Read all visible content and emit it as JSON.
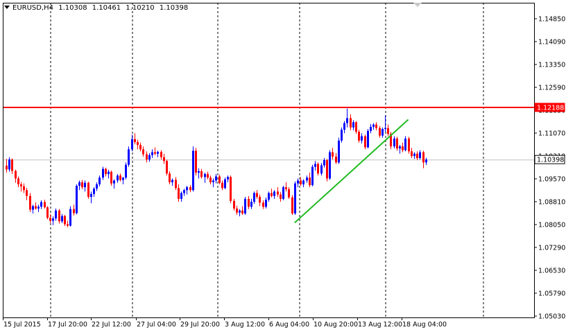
{
  "header": {
    "symbol": "EURUSD,H4",
    "open": "1.10308",
    "high": "1.10461",
    "low": "1.10210",
    "close": "1.10398"
  },
  "colors": {
    "bull": "#0000ff",
    "bear": "#ff0000",
    "frame": "#000000",
    "resistance_line": "#ff0000",
    "trend_line": "#22bb22",
    "bid_line": "#c0c0c0",
    "bid_badge_bg": "#ffffff",
    "resistance_badge_bg": "#ff0000"
  },
  "chart_data": {
    "type": "candlestick",
    "symbol": "EURUSD",
    "timeframe": "H4",
    "ylim": [
      1.0503,
      1.1523
    ],
    "y_ticks": [
      "1.14850",
      "1.14090",
      "1.13350",
      "1.12590",
      "1.11830",
      "1.11070",
      "1.10310",
      "1.09570",
      "1.08810",
      "1.08050",
      "1.07290",
      "1.06530",
      "1.05790",
      "1.05030"
    ],
    "x_ticks": [
      "15 Jul 2015",
      "17 Jul 20:00",
      "22 Jul 12:00",
      "27 Jul 04:00",
      "29 Jul 20:00",
      "3 Aug 12:00",
      "6 Aug 04:00",
      "10 Aug 20:00",
      "13 Aug 12:00",
      "18 Aug 04:00"
    ],
    "grid": "vertical dashed period separators",
    "horizontal_line": {
      "price": 1.12188,
      "label": "1.12188"
    },
    "bid_line": {
      "price": 1.10398,
      "label": "1.10398"
    },
    "trend_line": {
      "from": {
        "bar": 99,
        "price": 1.0823
      },
      "to": {
        "bar": 138,
        "price": 1.1177
      }
    },
    "candles": [
      [
        1.1019,
        1.1042,
        1.0995,
        1.1006
      ],
      [
        1.1006,
        1.1048,
        1.0998,
        1.104
      ],
      [
        1.104,
        1.1044,
        1.099,
        1.1001
      ],
      [
        1.1001,
        1.1005,
        1.096,
        1.0975
      ],
      [
        1.0975,
        1.0982,
        1.0945,
        1.0955
      ],
      [
        1.0955,
        1.0963,
        1.093,
        1.0948
      ],
      [
        1.0948,
        1.0958,
        1.0925,
        1.0935
      ],
      [
        1.0935,
        1.0943,
        1.09,
        1.0915
      ],
      [
        1.0915,
        1.0925,
        1.086,
        1.0868
      ],
      [
        1.0868,
        1.0885,
        1.0855,
        1.088
      ],
      [
        1.088,
        1.0893,
        1.0868,
        1.0872
      ],
      [
        1.0872,
        1.0885,
        1.086,
        1.0878
      ],
      [
        1.0878,
        1.09,
        1.087,
        1.0894
      ],
      [
        1.0894,
        1.0902,
        1.0872,
        1.0876
      ],
      [
        1.0876,
        1.088,
        1.0835,
        1.084
      ],
      [
        1.084,
        1.0852,
        1.0822,
        1.083
      ],
      [
        1.083,
        1.0845,
        1.0815,
        1.0838
      ],
      [
        1.0838,
        1.0872,
        1.083,
        1.0865
      ],
      [
        1.0865,
        1.087,
        1.082,
        1.0828
      ],
      [
        1.0828,
        1.0853,
        1.0822,
        1.0846
      ],
      [
        1.0846,
        1.085,
        1.0812,
        1.0818
      ],
      [
        1.0818,
        1.083,
        1.0808,
        1.0813
      ],
      [
        1.0813,
        1.088,
        1.081,
        1.087
      ],
      [
        1.087,
        1.0885,
        1.0848,
        1.0856
      ],
      [
        1.0856,
        1.0955,
        1.0852,
        1.095
      ],
      [
        1.095,
        1.0968,
        1.0935,
        1.0962
      ],
      [
        1.0962,
        1.097,
        1.0938,
        1.0945
      ],
      [
        1.0945,
        1.0968,
        1.093,
        1.096
      ],
      [
        1.096,
        1.0964,
        1.0905,
        1.0912
      ],
      [
        1.0912,
        1.093,
        1.089,
        1.0922
      ],
      [
        1.0922,
        1.0945,
        1.0912,
        1.094
      ],
      [
        1.094,
        1.0962,
        1.0932,
        1.0955
      ],
      [
        1.0955,
        1.0985,
        1.0948,
        1.0978
      ],
      [
        1.0978,
        1.1015,
        1.097,
        1.1008
      ],
      [
        1.1008,
        1.1012,
        1.0982,
        1.099
      ],
      [
        1.099,
        1.1005,
        1.0975,
        1.0998
      ],
      [
        1.0998,
        1.1002,
        1.095,
        1.0958
      ],
      [
        1.0958,
        1.0972,
        1.094,
        1.0968
      ],
      [
        1.0968,
        1.099,
        1.096,
        1.0985
      ],
      [
        1.0985,
        1.0992,
        1.0965,
        1.097
      ],
      [
        1.097,
        1.098,
        1.0955,
        1.0978
      ],
      [
        1.0978,
        1.103,
        1.0972,
        1.1022
      ],
      [
        1.1022,
        1.1085,
        1.1015,
        1.1075
      ],
      [
        1.1075,
        1.1125,
        1.1068,
        1.111
      ],
      [
        1.111,
        1.113,
        1.1092,
        1.11
      ],
      [
        1.11,
        1.1108,
        1.1075,
        1.109
      ],
      [
        1.109,
        1.1098,
        1.1068,
        1.1075
      ],
      [
        1.1075,
        1.1085,
        1.105,
        1.1058
      ],
      [
        1.1058,
        1.1068,
        1.103,
        1.104
      ],
      [
        1.104,
        1.1062,
        1.1032,
        1.1055
      ],
      [
        1.1055,
        1.1075,
        1.1045,
        1.1065
      ],
      [
        1.1065,
        1.1082,
        1.1055,
        1.106
      ],
      [
        1.106,
        1.107,
        1.1048,
        1.1066
      ],
      [
        1.1066,
        1.1072,
        1.104,
        1.1048
      ],
      [
        1.1048,
        1.106,
        1.1025,
        1.1035
      ],
      [
        1.1035,
        1.104,
        1.0985,
        1.0992
      ],
      [
        1.0992,
        1.1,
        1.0955,
        1.0962
      ],
      [
        1.0962,
        1.0975,
        1.095,
        1.097
      ],
      [
        1.097,
        1.098,
        1.0935,
        1.0942
      ],
      [
        1.0942,
        1.0955,
        1.0895,
        1.0905
      ],
      [
        1.0905,
        1.093,
        1.0895,
        1.0925
      ],
      [
        1.0925,
        1.094,
        1.0915,
        1.0935
      ],
      [
        1.0935,
        1.095,
        1.092,
        1.0945
      ],
      [
        1.0945,
        1.0952,
        1.0928,
        1.0935
      ],
      [
        1.0935,
        1.1085,
        1.093,
        1.107
      ],
      [
        1.107,
        1.108,
        1.0985,
        1.0995
      ],
      [
        1.0995,
        1.101,
        1.0975,
        1.1
      ],
      [
        1.1,
        1.1008,
        1.0975,
        1.098
      ],
      [
        1.098,
        1.0995,
        1.096,
        1.099
      ],
      [
        1.099,
        1.0998,
        1.0972,
        1.0978
      ],
      [
        1.0978,
        1.0985,
        1.0955,
        1.0962
      ],
      [
        1.0962,
        1.0975,
        1.0945,
        1.0968
      ],
      [
        1.0968,
        1.099,
        1.0958,
        1.0982
      ],
      [
        1.0982,
        1.0988,
        1.0955,
        1.096
      ],
      [
        1.096,
        1.0968,
        1.0935,
        1.0942
      ],
      [
        1.0942,
        1.0978,
        1.0938,
        1.0972
      ],
      [
        1.0972,
        1.0985,
        1.0962,
        1.098
      ],
      [
        1.098,
        1.0985,
        1.089,
        1.0898
      ],
      [
        1.0898,
        1.0905,
        1.0865,
        1.0872
      ],
      [
        1.0872,
        1.0882,
        1.085,
        1.0858
      ],
      [
        1.0858,
        1.087,
        1.0845,
        1.0865
      ],
      [
        1.0865,
        1.088,
        1.085,
        1.0855
      ],
      [
        1.0855,
        1.0912,
        1.085,
        1.0905
      ],
      [
        1.0905,
        1.0915,
        1.087,
        1.0878
      ],
      [
        1.0878,
        1.0905,
        1.087,
        1.0895
      ],
      [
        1.0895,
        1.093,
        1.0888,
        1.0925
      ],
      [
        1.0925,
        1.0935,
        1.0905,
        1.0912
      ],
      [
        1.0912,
        1.092,
        1.088,
        1.0892
      ],
      [
        1.0892,
        1.09,
        1.087,
        1.0878
      ],
      [
        1.0878,
        1.091,
        1.0872,
        1.0902
      ],
      [
        1.0902,
        1.093,
        1.0895,
        1.0925
      ],
      [
        1.0925,
        1.094,
        1.091,
        1.0915
      ],
      [
        1.0915,
        1.0935,
        1.0905,
        1.093
      ],
      [
        1.093,
        1.0945,
        1.0912,
        1.092
      ],
      [
        1.092,
        1.0928,
        1.0895,
        1.0905
      ],
      [
        1.0905,
        1.095,
        1.09,
        1.0945
      ],
      [
        1.0945,
        1.0962,
        1.093,
        1.0938
      ],
      [
        1.0938,
        1.0945,
        1.0905,
        1.091
      ],
      [
        1.091,
        1.0918,
        1.085,
        1.0855
      ],
      [
        1.0855,
        1.0965,
        1.085,
        1.0958
      ],
      [
        1.0958,
        1.0975,
        1.0945,
        1.0968
      ],
      [
        1.0968,
        1.098,
        1.095,
        1.0955
      ],
      [
        1.0955,
        1.0972,
        1.0945,
        1.0968
      ],
      [
        1.0968,
        1.0985,
        1.096,
        1.0978
      ],
      [
        1.0978,
        1.0995,
        1.0945,
        1.0952
      ],
      [
        1.0952,
        1.1022,
        1.0948,
        1.1015
      ],
      [
        1.1015,
        1.1035,
        1.1002,
        1.1025
      ],
      [
        1.1025,
        1.103,
        1.0985,
        1.0992
      ],
      [
        1.0992,
        1.1028,
        1.0985,
        1.102
      ],
      [
        1.102,
        1.1045,
        1.1012,
        1.1038
      ],
      [
        1.1038,
        1.1042,
        1.0965,
        1.0975
      ],
      [
        1.0975,
        1.1072,
        1.097,
        1.1065
      ],
      [
        1.1065,
        1.108,
        1.104,
        1.105
      ],
      [
        1.105,
        1.1062,
        1.1025,
        1.103
      ],
      [
        1.103,
        1.1115,
        1.1025,
        1.1105
      ],
      [
        1.1105,
        1.115,
        1.1098,
        1.1142
      ],
      [
        1.1142,
        1.1172,
        1.113,
        1.1165
      ],
      [
        1.1165,
        1.1215,
        1.115,
        1.1182
      ],
      [
        1.1182,
        1.1195,
        1.114,
        1.115
      ],
      [
        1.115,
        1.1175,
        1.114,
        1.1168
      ],
      [
        1.1168,
        1.1172,
        1.1128,
        1.1135
      ],
      [
        1.1135,
        1.1142,
        1.1098,
        1.1105
      ],
      [
        1.1105,
        1.113,
        1.1095,
        1.112
      ],
      [
        1.112,
        1.1125,
        1.1075,
        1.1082
      ],
      [
        1.1082,
        1.1145,
        1.1078,
        1.1138
      ],
      [
        1.1138,
        1.1162,
        1.113,
        1.1152
      ],
      [
        1.1152,
        1.1165,
        1.1142,
        1.116
      ],
      [
        1.116,
        1.1168,
        1.114,
        1.1148
      ],
      [
        1.1148,
        1.1155,
        1.1115,
        1.1122
      ],
      [
        1.1122,
        1.115,
        1.1115,
        1.1145
      ],
      [
        1.1145,
        1.1192,
        1.1135,
        1.1148
      ],
      [
        1.1148,
        1.116,
        1.112,
        1.1128
      ],
      [
        1.1128,
        1.1135,
        1.1075,
        1.1085
      ],
      [
        1.1085,
        1.112,
        1.1078,
        1.1112
      ],
      [
        1.1112,
        1.1118,
        1.107,
        1.1078
      ],
      [
        1.1078,
        1.109,
        1.106,
        1.1085
      ],
      [
        1.1085,
        1.1098,
        1.1065,
        1.1072
      ],
      [
        1.1072,
        1.112,
        1.1068,
        1.1112
      ],
      [
        1.1112,
        1.1118,
        1.106,
        1.1068
      ],
      [
        1.1068,
        1.108,
        1.1045,
        1.1052
      ],
      [
        1.1052,
        1.1065,
        1.1042,
        1.106
      ],
      [
        1.106,
        1.1068,
        1.1038,
        1.1045
      ],
      [
        1.1045,
        1.1072,
        1.104,
        1.1065
      ],
      [
        1.1065,
        1.107,
        1.101,
        1.103
      ],
      [
        1.103,
        1.1046,
        1.1021,
        1.104
      ]
    ]
  }
}
